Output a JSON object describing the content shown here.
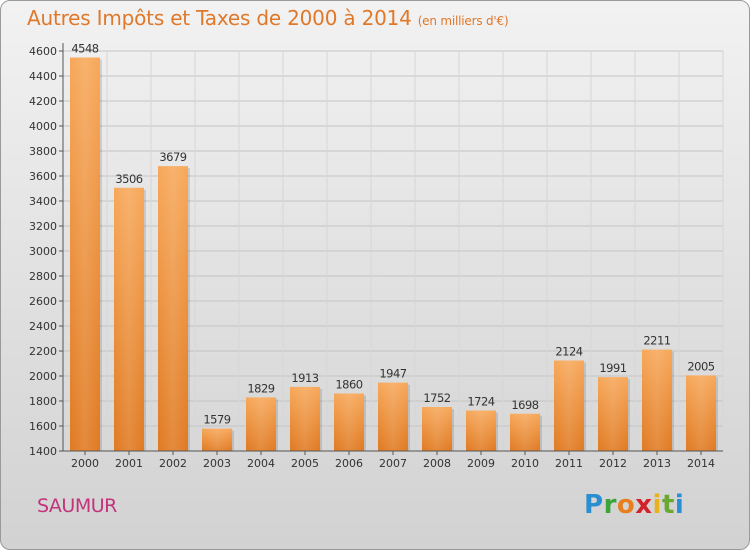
{
  "header": {
    "title": "Autres Impôts et Taxes de 2000 à 2014",
    "subtitle": "(en milliers d'€)"
  },
  "footer": {
    "city": "SAUMUR"
  },
  "logo": {
    "letters": [
      "P",
      "r",
      "o",
      "x",
      "i",
      "t",
      "i"
    ],
    "colors": [
      "#2a8fd2",
      "#3aa63a",
      "#e87e1e",
      "#d2232a",
      "#e8b21e",
      "#6aa832",
      "#2a8fd2"
    ]
  },
  "colors": {
    "title": "#e0782a",
    "city": "#c2337b",
    "bar_light": "#f7a85a",
    "bar_dark": "#e07a22"
  },
  "chart_data": {
    "type": "bar",
    "categories": [
      "2000",
      "2001",
      "2002",
      "2003",
      "2004",
      "2005",
      "2006",
      "2007",
      "2008",
      "2009",
      "2010",
      "2011",
      "2012",
      "2013",
      "2014"
    ],
    "values": [
      4548,
      3506,
      3679,
      1579,
      1829,
      1913,
      1860,
      1947,
      1752,
      1724,
      1698,
      2124,
      1991,
      2211,
      2005
    ],
    "yticks": [
      1400,
      1600,
      1800,
      2000,
      2200,
      2400,
      2600,
      2800,
      3000,
      3200,
      3400,
      3600,
      3800,
      4000,
      4200,
      4400,
      4600
    ],
    "ylim": [
      1400,
      4600
    ],
    "grid": true,
    "title": "Autres Impôts et Taxes de 2000 à 2014",
    "xlabel": "",
    "ylabel": ""
  }
}
